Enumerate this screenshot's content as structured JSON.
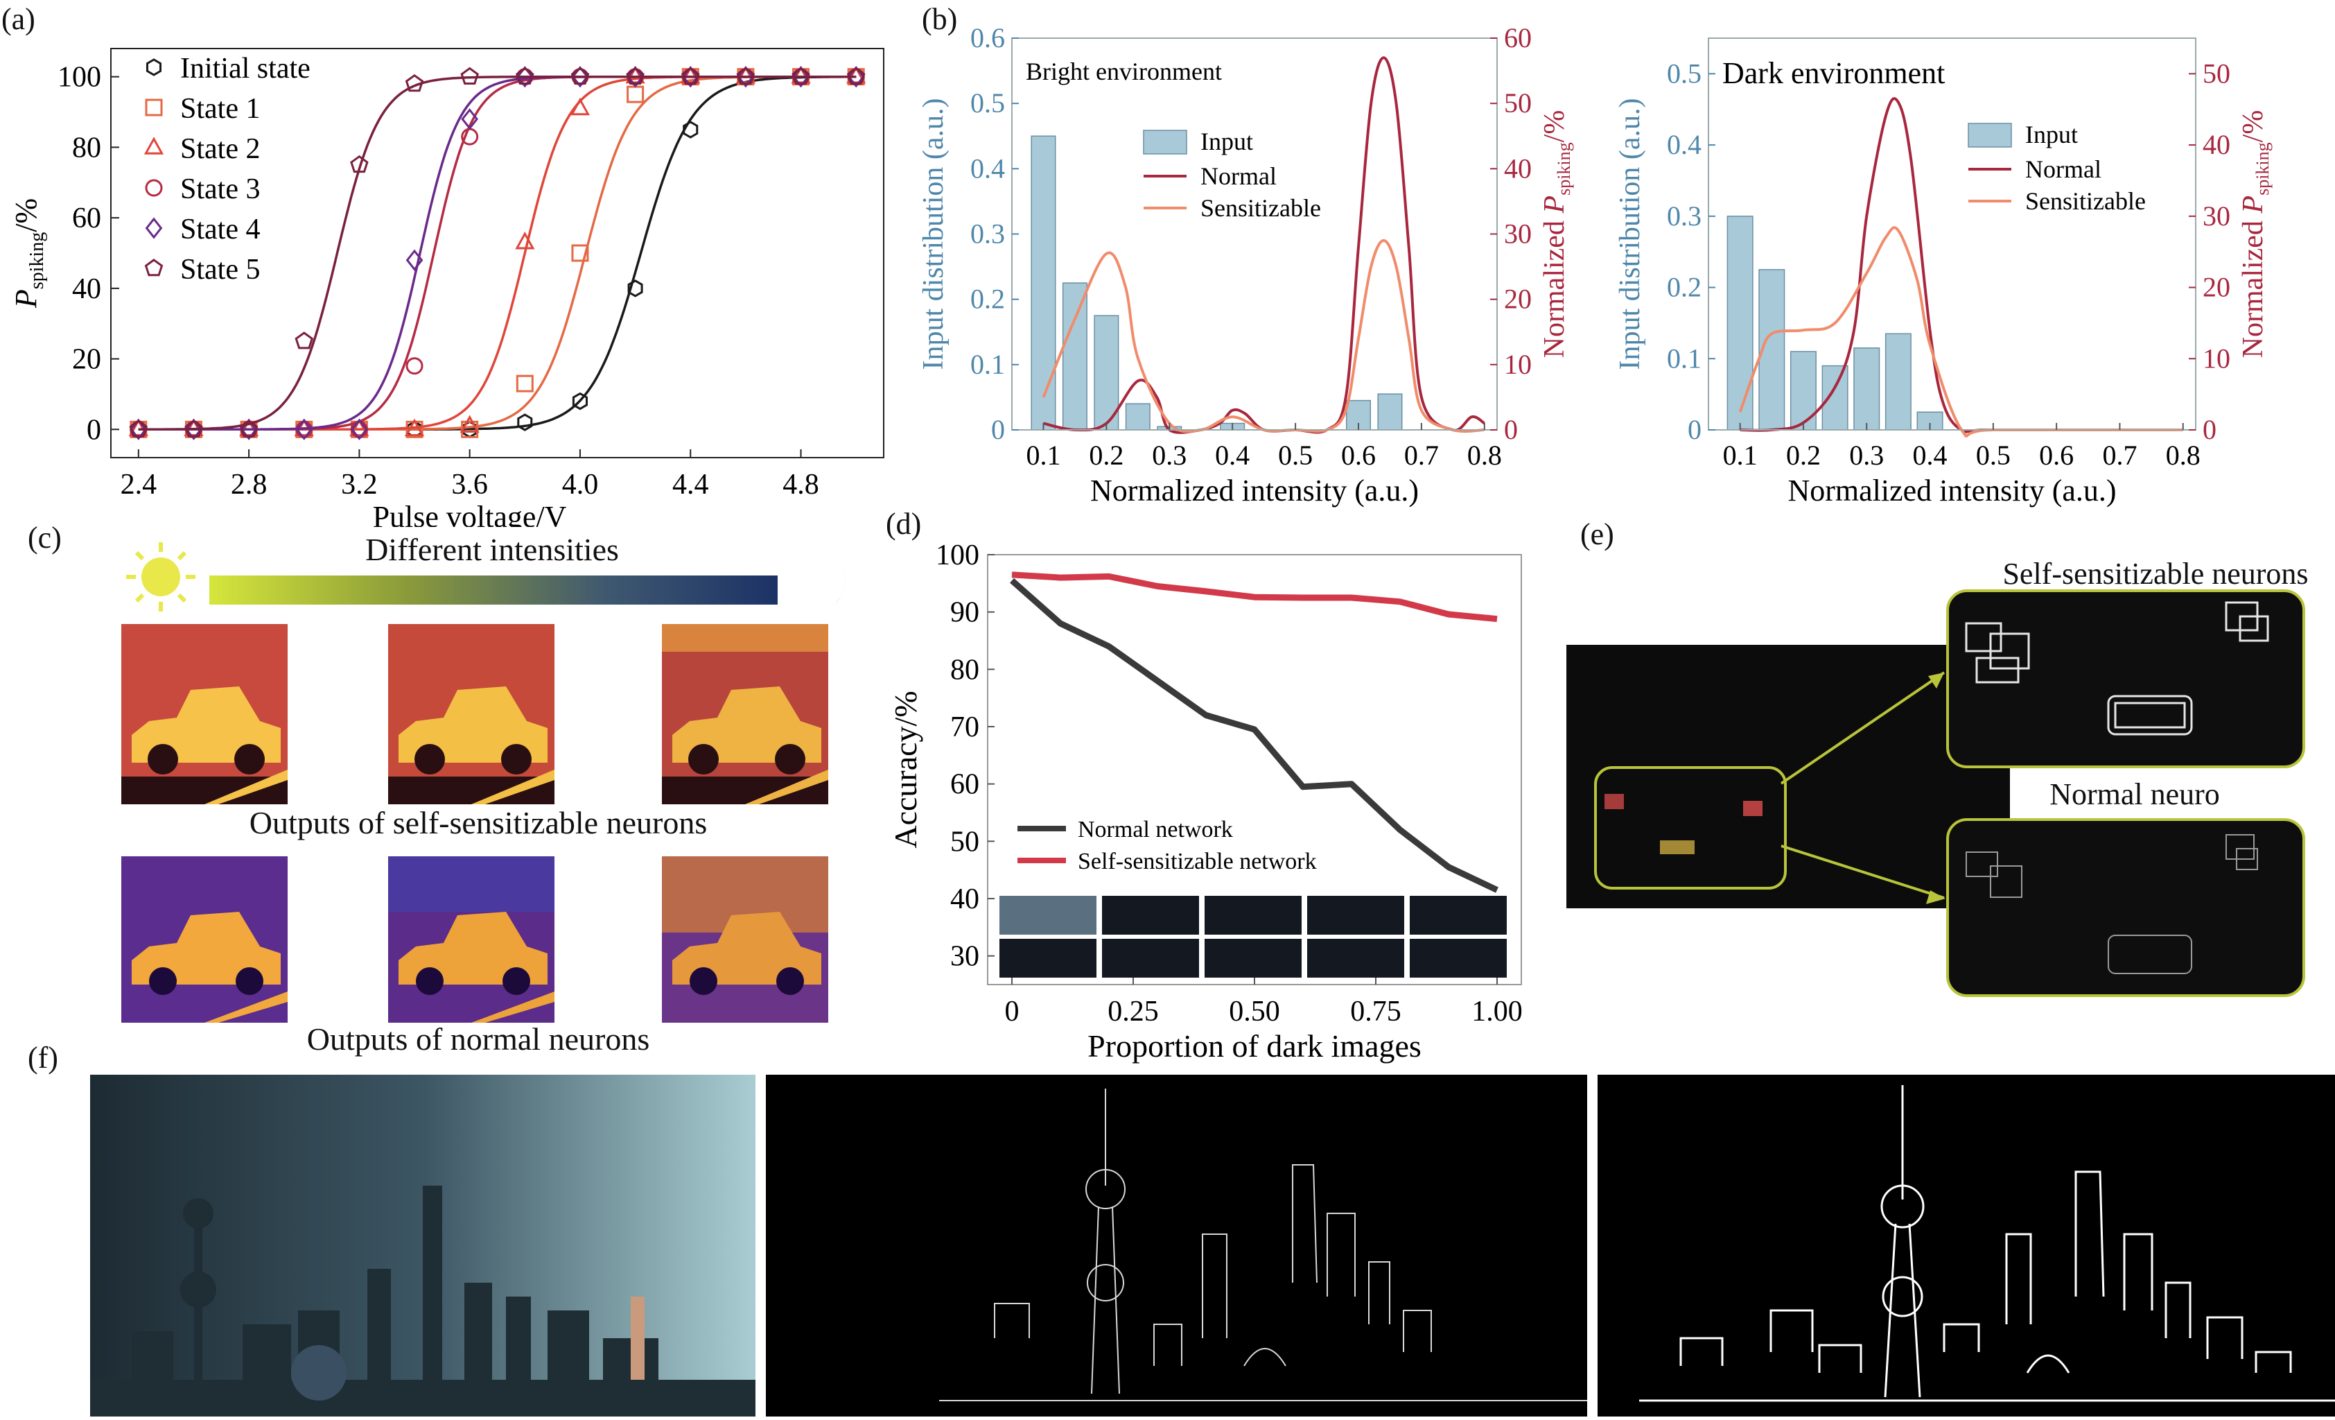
{
  "panels": {
    "a": "(a)",
    "b": "(b)",
    "c": "(c)",
    "d": "(d)",
    "e": "(e)",
    "f": "(f)"
  },
  "panel_c": {
    "title": "Different intensities",
    "caption_top": "Outputs of self-sensitizable neurons",
    "caption_bottom": "Outputs of normal neurons"
  },
  "panel_e": {
    "label_top": "Self-sensitizable neurons",
    "label_bottom": "Normal neuro"
  },
  "chart_data": [
    {
      "id": "a",
      "type": "scatter",
      "xlabel": "Pulse voltage/V",
      "ylabel_main": "P",
      "ylabel_sub": "spiking",
      "ylabel_unit": "/%",
      "xlim": [
        2.3,
        5.1
      ],
      "ylim": [
        -8,
        108
      ],
      "xticks": [
        "2.4",
        "2.8",
        "3.2",
        "3.6",
        "4.0",
        "4.4",
        "4.8"
      ],
      "yticks": [
        "0",
        "20",
        "40",
        "60",
        "80",
        "100"
      ],
      "legend_position": "top-left",
      "series": [
        {
          "name": "Initial state",
          "marker": "hexagon",
          "color": "#1a1a1a",
          "v50": 4.22,
          "k": 11,
          "x": [
            2.4,
            2.6,
            2.8,
            3.0,
            3.2,
            3.4,
            3.6,
            3.8,
            4.0,
            4.2,
            4.4,
            4.6,
            4.8,
            5.0
          ],
          "y": [
            0,
            0,
            0,
            0,
            0,
            0,
            0,
            2,
            8,
            40,
            85,
            100,
            100,
            100
          ]
        },
        {
          "name": "State 1",
          "marker": "square",
          "color": "#e46a45",
          "v50": 4.02,
          "k": 12,
          "x": [
            2.4,
            2.6,
            2.8,
            3.0,
            3.2,
            3.4,
            3.6,
            3.8,
            4.0,
            4.2,
            4.4,
            4.6,
            4.8,
            5.0
          ],
          "y": [
            0,
            0,
            0,
            0,
            0,
            0,
            0,
            13,
            50,
            95,
            100,
            100,
            100,
            100
          ]
        },
        {
          "name": "State 2",
          "marker": "triangle",
          "color": "#e0463a",
          "v50": 3.8,
          "k": 13,
          "x": [
            2.4,
            2.6,
            2.8,
            3.0,
            3.2,
            3.4,
            3.6,
            3.8,
            4.0,
            4.2,
            4.4,
            4.6,
            4.8,
            5.0
          ],
          "y": [
            0,
            0,
            0,
            0,
            0,
            0,
            1,
            53,
            91,
            100,
            100,
            100,
            100,
            100
          ]
        },
        {
          "name": "State 3",
          "marker": "circle",
          "color": "#b52b44",
          "v50": 3.47,
          "k": 14,
          "x": [
            2.4,
            2.6,
            2.8,
            3.0,
            3.2,
            3.4,
            3.6,
            3.8,
            4.0,
            4.2,
            4.4,
            4.6,
            4.8,
            5.0
          ],
          "y": [
            0,
            0,
            0,
            0,
            0,
            18,
            83,
            100,
            100,
            100,
            100,
            100,
            100,
            100
          ]
        },
        {
          "name": "State 4",
          "marker": "diamond",
          "color": "#6a2a8a",
          "v50": 3.42,
          "k": 14,
          "x": [
            2.4,
            2.6,
            2.8,
            3.0,
            3.2,
            3.4,
            3.6,
            3.8,
            4.0,
            4.2,
            4.4,
            4.6,
            4.8,
            5.0
          ],
          "y": [
            0,
            0,
            0,
            0,
            0,
            48,
            88,
            100,
            100,
            100,
            100,
            100,
            100,
            100
          ]
        },
        {
          "name": "State 5",
          "marker": "pentagon",
          "color": "#7a2040",
          "v50": 3.12,
          "k": 13,
          "x": [
            2.4,
            2.6,
            2.8,
            3.0,
            3.2,
            3.4,
            3.6,
            3.8,
            4.0,
            4.2,
            4.4,
            4.6,
            4.8,
            5.0
          ],
          "y": [
            0,
            0,
            0,
            25,
            75,
            98,
            100,
            100,
            100,
            100,
            100,
            100,
            100,
            100
          ]
        }
      ]
    },
    {
      "id": "b-bright",
      "type": "bar",
      "title": "Bright environment",
      "xlabel": "Normalized intensity (a.u.)",
      "ylabel_left": "Input distribution (a.u.)",
      "ylabel_right_main": "Normalized P",
      "ylabel_right_sub": "spiking",
      "ylabel_right_unit": "/%",
      "xlim": [
        0.05,
        0.82
      ],
      "ylim_left": [
        0,
        0.6
      ],
      "ylim_right": [
        0,
        60
      ],
      "xticks": [
        "0.1",
        "0.2",
        "0.3",
        "0.4",
        "0.5",
        "0.6",
        "0.7",
        "0.8"
      ],
      "yticks_left": [
        "0",
        "0.1",
        "0.2",
        "0.3",
        "0.4",
        "0.5",
        "0.6"
      ],
      "yticks_right": [
        "0",
        "10",
        "20",
        "30",
        "40",
        "50",
        "60"
      ],
      "legend_position": "top-center",
      "bars": {
        "name": "Input",
        "bin_width": 0.038,
        "x": [
          0.1,
          0.15,
          0.2,
          0.25,
          0.3,
          0.35,
          0.4,
          0.45,
          0.5,
          0.6,
          0.65,
          0.7,
          0.75,
          0.8
        ],
        "values": [
          0.45,
          0.225,
          0.175,
          0.04,
          0.005,
          0.0,
          0.01,
          0.0,
          0.0,
          0.045,
          0.055,
          0.0,
          0.0,
          0.0
        ]
      },
      "series": [
        {
          "name": "Normal",
          "color": "#a8273e",
          "x": [
            0.1,
            0.15,
            0.2,
            0.25,
            0.28,
            0.3,
            0.35,
            0.38,
            0.4,
            0.42,
            0.45,
            0.5,
            0.55,
            0.58,
            0.6,
            0.62,
            0.64,
            0.66,
            0.68,
            0.7,
            0.75,
            0.78,
            0.8
          ],
          "y": [
            1,
            0,
            1,
            7.5,
            5,
            0,
            0,
            1,
            3,
            2.5,
            0,
            0,
            0,
            5,
            28,
            50,
            57,
            50,
            28,
            5,
            0,
            2,
            1
          ]
        },
        {
          "name": "Sensitizable",
          "color": "#f08c6c",
          "x": [
            0.1,
            0.15,
            0.2,
            0.23,
            0.25,
            0.3,
            0.35,
            0.4,
            0.45,
            0.5,
            0.55,
            0.58,
            0.6,
            0.62,
            0.64,
            0.66,
            0.68,
            0.7,
            0.75,
            0.8
          ],
          "y": [
            5,
            17,
            27,
            22,
            11,
            1,
            0,
            2,
            0,
            0,
            0,
            3,
            14,
            25,
            29,
            25,
            14,
            3,
            0,
            0
          ]
        }
      ]
    },
    {
      "id": "b-dark",
      "type": "bar",
      "title": "Dark environment",
      "xlabel": "Normalized intensity (a.u.)",
      "ylabel_left": "Input distribution (a.u.)",
      "ylabel_right_main": "Normalized P",
      "ylabel_right_sub": "spiking",
      "ylabel_right_unit": "/%",
      "xlim": [
        0.05,
        0.82
      ],
      "ylim_left": [
        0,
        0.55
      ],
      "ylim_right": [
        0,
        55
      ],
      "xticks": [
        "0.1",
        "0.2",
        "0.3",
        "0.4",
        "0.5",
        "0.6",
        "0.7",
        "0.8"
      ],
      "yticks_left": [
        "0",
        "0.1",
        "0.2",
        "0.3",
        "0.4",
        "0.5"
      ],
      "yticks_right": [
        "0",
        "10",
        "20",
        "30",
        "40",
        "50"
      ],
      "legend_position": "top-right",
      "bars": {
        "name": "Input",
        "bin_width": 0.04,
        "x": [
          0.1,
          0.15,
          0.2,
          0.25,
          0.3,
          0.35,
          0.4
        ],
        "values": [
          0.3,
          0.225,
          0.11,
          0.09,
          0.115,
          0.135,
          0.025
        ]
      },
      "series": [
        {
          "name": "Normal",
          "color": "#a8273e",
          "x": [
            0.1,
            0.15,
            0.2,
            0.25,
            0.28,
            0.3,
            0.33,
            0.35,
            0.37,
            0.4,
            0.42,
            0.45,
            0.5,
            0.8
          ],
          "y": [
            0,
            0,
            1,
            6,
            14,
            30,
            44,
            46,
            38,
            14,
            4,
            0,
            0,
            0
          ]
        },
        {
          "name": "Sensitizable",
          "color": "#f08c6c",
          "x": [
            0.1,
            0.13,
            0.15,
            0.2,
            0.25,
            0.3,
            0.33,
            0.35,
            0.38,
            0.4,
            0.45,
            0.5,
            0.8
          ],
          "y": [
            2.5,
            10,
            13.5,
            14,
            15,
            22,
            27,
            28,
            21,
            12,
            0,
            0,
            0
          ]
        }
      ]
    },
    {
      "id": "d",
      "type": "line",
      "xlabel": "Proportion of dark images",
      "ylabel": "Accuracy/%",
      "xlim": [
        -0.05,
        1.05
      ],
      "ylim": [
        25,
        100
      ],
      "xticks": [
        "0",
        "0.25",
        "0.50",
        "0.75",
        "1.00"
      ],
      "yticks": [
        "30",
        "40",
        "50",
        "60",
        "70",
        "80",
        "90",
        "100"
      ],
      "legend_position": "bottom-left",
      "series": [
        {
          "name": "Normal network",
          "color": "#3a3a3a",
          "x": [
            0,
            0.1,
            0.2,
            0.3,
            0.4,
            0.5,
            0.6,
            0.7,
            0.8,
            0.9,
            1.0
          ],
          "y": [
            95.5,
            88,
            84,
            78,
            72,
            69.5,
            59.5,
            60,
            52,
            45.5,
            41.5
          ]
        },
        {
          "name": "Self-sensitizable network",
          "color": "#d23a4a",
          "x": [
            0,
            0.1,
            0.2,
            0.3,
            0.4,
            0.5,
            0.6,
            0.7,
            0.8,
            0.9,
            1.0
          ],
          "y": [
            96.5,
            96,
            96.2,
            94.5,
            93.6,
            92.6,
            92.5,
            92.5,
            91.8,
            89.6,
            88.8
          ]
        }
      ]
    }
  ]
}
